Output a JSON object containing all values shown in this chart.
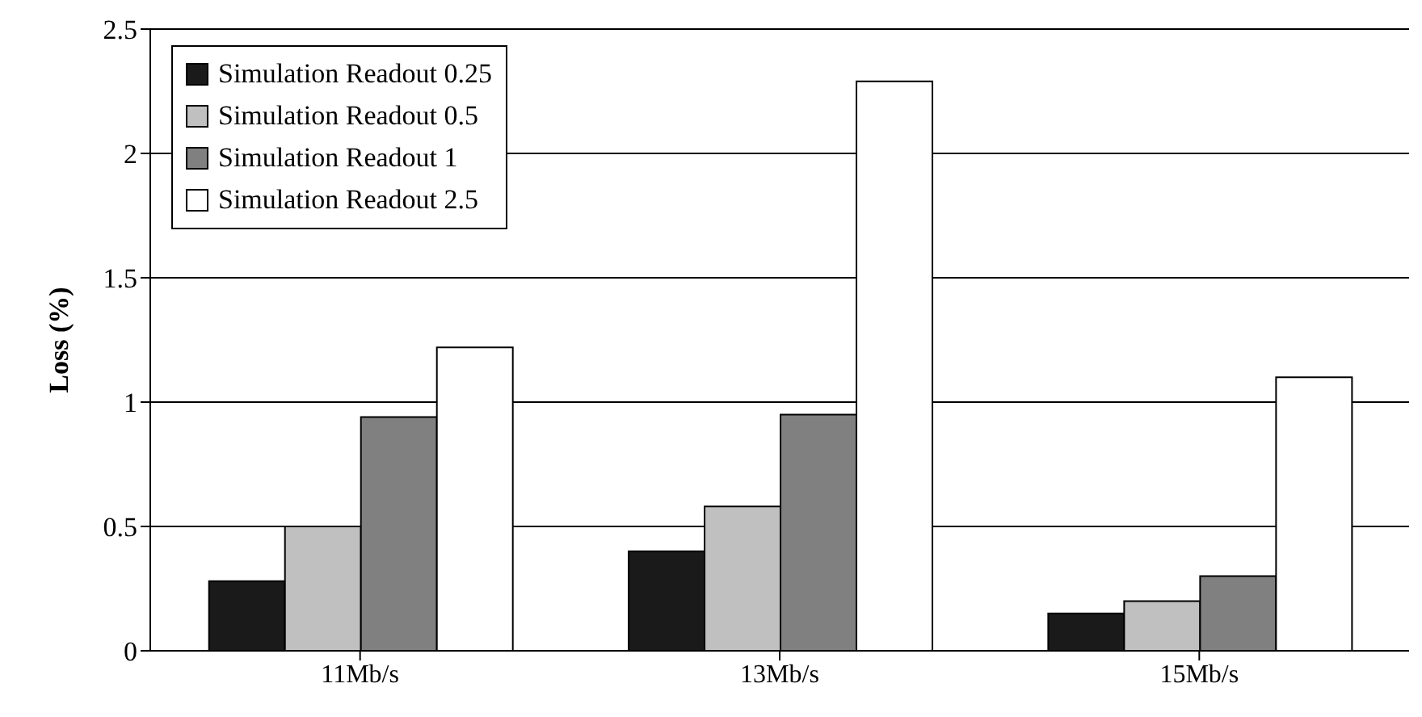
{
  "chart_data": {
    "type": "bar",
    "ylabel": "Loss (%)",
    "categories": [
      "11Mb/s",
      "13Mb/s",
      "15Mb/s"
    ],
    "series": [
      {
        "name": "Simulation Readout 0.25",
        "color": "#1a1a1a",
        "values": [
          0.28,
          0.4,
          0.15
        ]
      },
      {
        "name": "Simulation Readout 0.5",
        "color": "#c0c0c0",
        "values": [
          0.5,
          0.58,
          0.2
        ]
      },
      {
        "name": "Simulation Readout 1",
        "color": "#808080",
        "values": [
          0.94,
          0.95,
          0.3
        ]
      },
      {
        "name": "Simulation Readout 2.5",
        "color": "#ffffff",
        "values": [
          1.22,
          2.29,
          1.1
        ]
      }
    ],
    "ylim": [
      0,
      2.5
    ],
    "yticks": [
      0,
      0.5,
      1,
      1.5,
      2,
      2.5
    ],
    "grid": "y",
    "legend": "top left"
  }
}
